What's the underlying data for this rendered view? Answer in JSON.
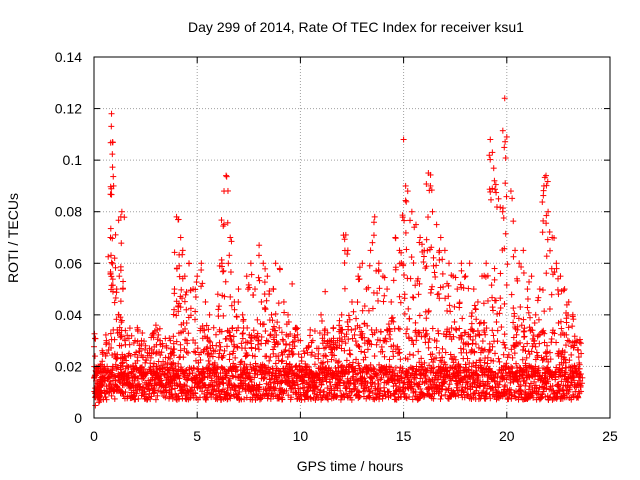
{
  "chart_data": {
    "type": "scatter",
    "title": "Day 299 of 2014, Rate Of TEC Index for receiver ksu1",
    "xlabel": "GPS time / hours",
    "ylabel": "ROTI / TECUs",
    "xlim": [
      0,
      25
    ],
    "ylim": [
      0,
      0.14
    ],
    "xticks": [
      0,
      5,
      10,
      15,
      20,
      25
    ],
    "xtick_labels": [
      "0",
      "5",
      "10",
      "15",
      "20",
      "25"
    ],
    "yticks": [
      0,
      0.02,
      0.04,
      0.06,
      0.08,
      0.1,
      0.12,
      0.14
    ],
    "ytick_labels": [
      "0",
      "0.02",
      "0.04",
      "0.06",
      "0.08",
      "0.1",
      "0.12",
      "0.14"
    ],
    "grid": true,
    "marker": "+",
    "color": "#ff0000",
    "series": [
      {
        "name": "ROTI",
        "x": [
          0.05,
          0.1,
          0.15,
          0.2,
          0.3,
          0.4,
          0.6,
          0.8,
          0.85,
          0.9,
          0.95,
          1.0,
          1.1,
          1.2,
          1.3,
          1.35,
          1.4,
          1.5,
          1.7,
          1.9,
          2.1,
          2.3,
          2.5,
          2.8,
          3.0,
          3.2,
          3.5,
          3.7,
          3.9,
          4.0,
          4.1,
          4.2,
          4.3,
          4.4,
          4.6,
          4.8,
          5.0,
          5.2,
          5.4,
          5.6,
          5.8,
          6.0,
          6.2,
          6.3,
          6.4,
          6.6,
          6.8,
          7.0,
          7.2,
          7.4,
          7.6,
          7.8,
          8.0,
          8.2,
          8.4,
          8.6,
          8.8,
          9.0,
          9.2,
          9.4,
          9.6,
          9.8,
          10.0,
          10.2,
          10.4,
          10.6,
          10.8,
          11.0,
          11.2,
          11.4,
          11.6,
          11.8,
          12.0,
          12.2,
          12.3,
          12.5,
          12.8,
          13.0,
          13.2,
          13.4,
          13.6,
          13.8,
          14.0,
          14.2,
          14.4,
          14.6,
          14.8,
          15.0,
          15.1,
          15.2,
          15.4,
          15.6,
          15.8,
          16.0,
          16.2,
          16.3,
          16.4,
          16.6,
          16.8,
          17.0,
          17.2,
          17.4,
          17.6,
          17.8,
          18.0,
          18.2,
          18.4,
          18.6,
          18.8,
          19.0,
          19.2,
          19.3,
          19.4,
          19.6,
          19.8,
          19.9,
          20.0,
          20.2,
          20.4,
          20.6,
          20.8,
          21.0,
          21.2,
          21.4,
          21.6,
          21.8,
          21.9,
          22.0,
          22.2,
          22.4,
          22.6,
          22.8,
          23.0,
          23.2,
          23.4,
          23.6
        ],
        "y": [
          0.024,
          0.018,
          0.012,
          0.02,
          0.015,
          0.022,
          0.03,
          0.07,
          0.118,
          0.107,
          0.09,
          0.062,
          0.05,
          0.04,
          0.078,
          0.08,
          0.05,
          0.03,
          0.025,
          0.02,
          0.035,
          0.03,
          0.028,
          0.025,
          0.036,
          0.03,
          0.028,
          0.03,
          0.05,
          0.078,
          0.077,
          0.07,
          0.065,
          0.055,
          0.06,
          0.05,
          0.055,
          0.06,
          0.045,
          0.04,
          0.035,
          0.048,
          0.06,
          0.088,
          0.094,
          0.07,
          0.045,
          0.05,
          0.04,
          0.055,
          0.06,
          0.05,
          0.067,
          0.06,
          0.055,
          0.04,
          0.06,
          0.058,
          0.045,
          0.04,
          0.052,
          0.035,
          0.03,
          0.025,
          0.028,
          0.03,
          0.027,
          0.04,
          0.049,
          0.03,
          0.035,
          0.03,
          0.04,
          0.071,
          0.065,
          0.045,
          0.055,
          0.06,
          0.05,
          0.065,
          0.078,
          0.06,
          0.055,
          0.05,
          0.045,
          0.07,
          0.065,
          0.108,
          0.09,
          0.088,
          0.08,
          0.075,
          0.07,
          0.065,
          0.095,
          0.09,
          0.08,
          0.075,
          0.07,
          0.065,
          0.06,
          0.055,
          0.05,
          0.06,
          0.055,
          0.06,
          0.05,
          0.045,
          0.055,
          0.06,
          0.108,
          0.103,
          0.092,
          0.085,
          0.08,
          0.124,
          0.109,
          0.088,
          0.065,
          0.06,
          0.065,
          0.05,
          0.055,
          0.04,
          0.05,
          0.09,
          0.094,
          0.08,
          0.07,
          0.06,
          0.055,
          0.05,
          0.045,
          0.04,
          0.03,
          0.025
        ]
      }
    ]
  }
}
